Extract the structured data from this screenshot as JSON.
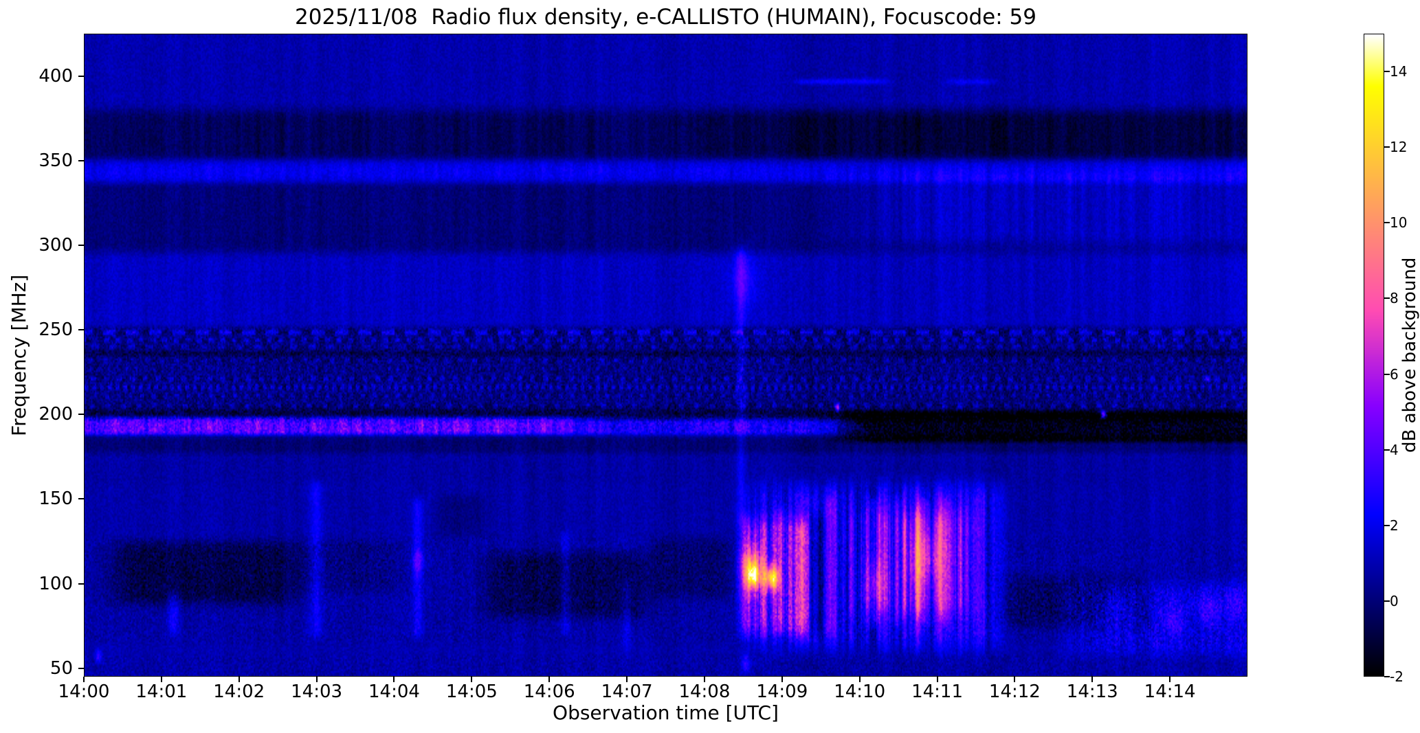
{
  "chart_data": {
    "type": "heatmap",
    "title": "2025/11/08  Radio flux density, e-CALLISTO (HUMAIN), Focuscode: 59",
    "xlabel": "Observation time [UTC]",
    "ylabel": "Frequency [MHz]",
    "x_range_minutes": [
      0,
      15
    ],
    "x_tick_minutes": [
      0,
      1,
      2,
      3,
      4,
      5,
      6,
      7,
      8,
      9,
      10,
      11,
      12,
      13,
      14
    ],
    "x_tick_labels": [
      "14:00",
      "14:01",
      "14:02",
      "14:03",
      "14:04",
      "14:05",
      "14:06",
      "14:07",
      "14:08",
      "14:09",
      "14:10",
      "14:11",
      "14:12",
      "14:13",
      "14:14"
    ],
    "y_range_mhz": [
      45,
      425
    ],
    "y_ticks": [
      50,
      100,
      150,
      200,
      250,
      300,
      350,
      400
    ],
    "colorbar": {
      "label": "dB above background",
      "min": -2,
      "max": 15,
      "ticks": [
        -2,
        0,
        2,
        4,
        6,
        8,
        10,
        12,
        14
      ],
      "colormap": "gnuplot2"
    },
    "grid": false,
    "feature_units": "t in minutes after 14:00 UTC, f in MHz, db in dB above background",
    "base_db": 0.9,
    "col_noise_db": 0.35,
    "pix_noise_db": 0.45,
    "features": [
      {
        "k": "band",
        "f": [
          350,
          380
        ],
        "db": -1.35,
        "ef": 6,
        "striate": 0.25
      },
      {
        "k": "band",
        "t": [
          8.3,
          15.3
        ],
        "f": [
          352,
          380
        ],
        "db": -0.5,
        "et": 0.8,
        "ef": 6
      },
      {
        "k": "band",
        "f": [
          337,
          351
        ],
        "db": 1.15,
        "ef": 3,
        "striate": 0.3
      },
      {
        "k": "band",
        "f": [
          296,
          338
        ],
        "db": -0.9,
        "ef": 5,
        "striate": 0.2
      },
      {
        "k": "band",
        "t": [
          9.8,
          15.3
        ],
        "f": [
          300,
          340
        ],
        "db": 1.3,
        "et": 1.2,
        "ef": 8,
        "striate": 0.45
      },
      {
        "k": "band",
        "f": [
          252,
          295
        ],
        "db": 0.35,
        "ef": 4,
        "striate": 0.5
      },
      {
        "k": "band",
        "f": [
          196,
          252
        ],
        "db": -0.75,
        "ef": 2,
        "speckle": 0.9
      },
      {
        "k": "hline",
        "f": 248.5,
        "db": 1.9,
        "w": 1.2,
        "period": 18,
        "duty": 0.55
      },
      {
        "k": "hline",
        "f": 244,
        "db": 1.4,
        "w": 1.0,
        "period": 9,
        "duty": 0.5
      },
      {
        "k": "hline",
        "f": 240,
        "db": 1.1,
        "w": 1.0,
        "period": 14,
        "duty": 0.45
      },
      {
        "k": "hline",
        "f": 236,
        "db": -0.8,
        "w": 1.5
      },
      {
        "k": "hline",
        "f": 232,
        "db": 1.0,
        "w": 1.0,
        "period": 11,
        "duty": 0.4
      },
      {
        "k": "hline",
        "f": 227,
        "db": 0.9,
        "w": 1.0,
        "period": 7,
        "duty": 0.35
      },
      {
        "k": "hline",
        "f": 221,
        "db": 1.3,
        "w": 1.2,
        "period": 10,
        "duty": 0.4
      },
      {
        "k": "hline",
        "f": 216,
        "db": 1.5,
        "w": 1.2,
        "period": 6,
        "duty": 0.45
      },
      {
        "k": "hline",
        "f": 211,
        "db": 1.1,
        "w": 1.0,
        "period": 9,
        "duty": 0.35
      },
      {
        "k": "hline",
        "f": 205,
        "db": 1.2,
        "w": 1.0,
        "period": 12,
        "duty": 0.3
      },
      {
        "k": "hline",
        "f": 201,
        "db": -1.0,
        "w": 2
      },
      {
        "k": "band",
        "t": [
          -0.3,
          6.3
        ],
        "f": [
          188,
          198
        ],
        "db": 3.2,
        "et": 0.5,
        "ef": 2,
        "striate": 0.35,
        "speckle": 1.3
      },
      {
        "k": "band",
        "t": [
          6.3,
          9.8
        ],
        "f": [
          188,
          197
        ],
        "db": 1.8,
        "et": 0.5,
        "ef": 2,
        "striate": 0.4,
        "speckle": 1.0
      },
      {
        "k": "band",
        "t": [
          9.8,
          15.3
        ],
        "f": [
          184,
          201
        ],
        "db": -2.6,
        "et": 0.4,
        "ef": 2.5,
        "speckle": 1.2
      },
      {
        "k": "blob",
        "tc": 13.15,
        "fc": 200,
        "st": 0.025,
        "sf": 1.5,
        "db": 8
      },
      {
        "k": "blob",
        "tc": 9.72,
        "fc": 204,
        "st": 0.02,
        "sf": 1.5,
        "db": 6.5
      },
      {
        "k": "blob",
        "tc": 14.5,
        "fc": 221,
        "st": 0.02,
        "sf": 1.2,
        "db": 4
      },
      {
        "k": "band",
        "f": [
          177,
          187
        ],
        "db": -1.0,
        "ef": 3,
        "striate": 0.2
      },
      {
        "k": "band",
        "f": [
          158,
          177
        ],
        "db": -0.2,
        "ef": 4,
        "striate": 0.35
      },
      {
        "k": "band",
        "f": [
          128,
          158
        ],
        "db": -0.1,
        "ef": 4,
        "striate": 0.55
      },
      {
        "k": "band",
        "f": [
          64,
          128
        ],
        "db": -0.15,
        "ef": 4,
        "striate": 0.7,
        "speckle": 0.5
      },
      {
        "k": "band",
        "t": [
          0.35,
          2.7
        ],
        "f": [
          88,
          124
        ],
        "db": -1.5,
        "et": 0.3,
        "ef": 6,
        "speckle": 0.6
      },
      {
        "k": "band",
        "t": [
          5.2,
          7.25
        ],
        "f": [
          80,
          118
        ],
        "db": -1.35,
        "et": 0.3,
        "ef": 6,
        "speckle": 0.6
      },
      {
        "k": "band",
        "t": [
          7.3,
          8.35
        ],
        "f": [
          92,
          126
        ],
        "db": -0.9,
        "et": 0.2,
        "ef": 6,
        "speckle": 0.5
      },
      {
        "k": "band",
        "t": [
          11.85,
          13.7
        ],
        "f": [
          74,
          104
        ],
        "db": -1.0,
        "et": 0.25,
        "ef": 6,
        "speckle": 0.7
      },
      {
        "k": "band",
        "t": [
          2.75,
          4.1
        ],
        "f": [
          95,
          125
        ],
        "db": -0.6,
        "et": 0.2,
        "ef": 5,
        "speckle": 0.5
      },
      {
        "k": "band",
        "t": [
          4.55,
          5.15
        ],
        "f": [
          128,
          152
        ],
        "db": -0.7,
        "et": 0.15,
        "ef": 5
      },
      {
        "k": "vline",
        "t": 3.0,
        "f": [
          68,
          160
        ],
        "db": 1.6,
        "w": 0.06
      },
      {
        "k": "vline",
        "t": 4.3,
        "f": [
          68,
          150
        ],
        "db": 1.8,
        "w": 0.05
      },
      {
        "k": "blob",
        "tc": 4.3,
        "fc": 113,
        "st": 0.05,
        "sf": 5,
        "db": 2.0
      },
      {
        "k": "vline",
        "t": 1.15,
        "f": [
          70,
          95
        ],
        "db": 1.5,
        "w": 0.05
      },
      {
        "k": "vline",
        "t": 6.2,
        "f": [
          70,
          130
        ],
        "db": 1.2,
        "w": 0.05
      },
      {
        "k": "vline",
        "t": 7.0,
        "f": [
          60,
          100
        ],
        "db": 1.0,
        "w": 0.04
      },
      {
        "k": "band",
        "t": [
          8.45,
          9.35
        ],
        "f": [
          70,
          138
        ],
        "db": 3.0,
        "et": 0.08,
        "ef": 8,
        "striate": 0.6,
        "speckle": 0.8
      },
      {
        "k": "blob",
        "tc": 8.62,
        "fc": 108,
        "st": 0.1,
        "sf": 9,
        "db": 7
      },
      {
        "k": "blob",
        "tc": 8.87,
        "fc": 103,
        "st": 0.06,
        "sf": 5,
        "db": 9
      },
      {
        "k": "blob",
        "tc": 8.63,
        "fc": 104,
        "st": 0.045,
        "sf": 4,
        "db": 6
      },
      {
        "k": "band",
        "t": [
          8.6,
          11.8
        ],
        "f": [
          62,
          158
        ],
        "db": 1.8,
        "et": 0.3,
        "ef": 10,
        "striate": 0.9,
        "speckle": 0.6
      },
      {
        "k": "band",
        "t": [
          9.9,
          11.45
        ],
        "f": [
          82,
          142
        ],
        "db": 1.6,
        "et": 0.25,
        "ef": 8,
        "striate": 0.8
      },
      {
        "k": "vline",
        "t": 8.98,
        "f": [
          70,
          145
        ],
        "db": 1.5,
        "w": 0.05
      },
      {
        "k": "vline",
        "t": 9.62,
        "f": [
          70,
          150
        ],
        "db": 1.2,
        "w": 0.05
      },
      {
        "k": "vline",
        "t": 10.18,
        "f": [
          75,
          150
        ],
        "db": 1.8,
        "w": 0.06
      },
      {
        "k": "vline",
        "t": 10.5,
        "f": [
          75,
          150
        ],
        "db": 1.5,
        "w": 0.05
      },
      {
        "k": "vline",
        "t": 10.82,
        "f": [
          75,
          150
        ],
        "db": 1.8,
        "w": 0.06
      },
      {
        "k": "vline",
        "t": 11.1,
        "f": [
          75,
          150
        ],
        "db": 1.6,
        "w": 0.05
      },
      {
        "k": "blob",
        "tc": 10.85,
        "fc": 115,
        "st": 0.15,
        "sf": 12,
        "db": 2.5
      },
      {
        "k": "blob",
        "tc": 10.2,
        "fc": 100,
        "st": 0.1,
        "sf": 10,
        "db": 2.2
      },
      {
        "k": "band",
        "t": [
          9.35,
          9.55
        ],
        "f": [
          70,
          140
        ],
        "db": -1.2,
        "et": 0.06,
        "ef": 6
      },
      {
        "k": "vline",
        "t": 8.47,
        "f": [
          135,
          298
        ],
        "db": 1.5,
        "w": 0.045
      },
      {
        "k": "blob",
        "tc": 8.5,
        "fc": 280,
        "st": 0.12,
        "sf": 12,
        "db": 1.8
      },
      {
        "k": "band",
        "t": [
          12.7,
          15.3
        ],
        "f": [
          58,
          100
        ],
        "db": 0.9,
        "et": 0.3,
        "ef": 6,
        "striate": 0.6,
        "speckle": 0.9
      },
      {
        "k": "blob",
        "tc": 13.35,
        "fc": 84,
        "st": 0.12,
        "sf": 8,
        "db": 1.4
      },
      {
        "k": "blob",
        "tc": 14.05,
        "fc": 78,
        "st": 0.1,
        "sf": 7,
        "db": 1.6
      },
      {
        "k": "blob",
        "tc": 14.5,
        "fc": 84,
        "st": 0.12,
        "sf": 8,
        "db": 1.8
      },
      {
        "k": "blob",
        "tc": 14.85,
        "fc": 88,
        "st": 0.08,
        "sf": 6,
        "db": 1.5
      },
      {
        "k": "hline",
        "f": 397,
        "t": [
          9.2,
          10.35
        ],
        "db": 1.6,
        "w": 1.2
      },
      {
        "k": "hline",
        "f": 397,
        "t": [
          11.15,
          11.75
        ],
        "db": 1.3,
        "w": 1.2
      },
      {
        "k": "band",
        "f": [
          44,
          58
        ],
        "db": -0.1,
        "ef": 3,
        "striate": 0.4,
        "speckle": 0.5
      },
      {
        "k": "blob",
        "tc": 0.18,
        "fc": 57,
        "st": 0.03,
        "sf": 3,
        "db": 2.5
      },
      {
        "k": "blob",
        "tc": 8.53,
        "fc": 52,
        "st": 0.04,
        "sf": 4,
        "db": 2.5
      }
    ]
  }
}
